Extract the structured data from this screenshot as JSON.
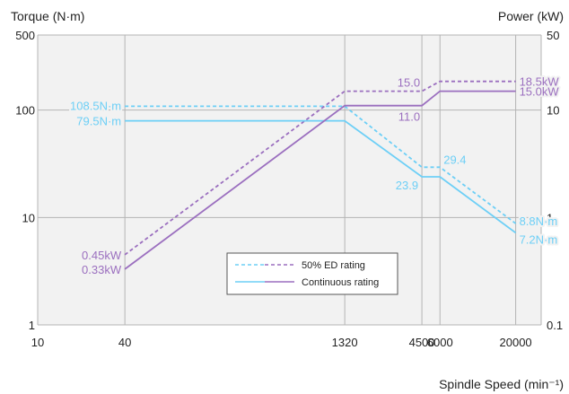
{
  "chart_data": {
    "type": "line",
    "title": "",
    "xlabel": "Spindle Speed (min⁻¹)",
    "ylabel_left": "Torque (N·m)",
    "ylabel_right": "Power (kW)",
    "x_scale": "log",
    "y_scale": "log",
    "xlim": [
      10,
      30000
    ],
    "ylim_left": [
      1,
      500
    ],
    "ylim_right": [
      0.1,
      50
    ],
    "x_ticks": [
      10,
      40,
      1320,
      4500,
      6000,
      20000
    ],
    "x_tick_labels": [
      "10",
      "40",
      "1320",
      "4500",
      "6000",
      "20000"
    ],
    "y_left_ticks": [
      1,
      10,
      100,
      500
    ],
    "y_left_tick_labels": [
      "1",
      "10",
      "100",
      "500"
    ],
    "y_right_ticks": [
      0.1,
      1,
      10,
      50
    ],
    "y_right_tick_labels": [
      "0.1",
      "1",
      "10",
      "50"
    ],
    "grid": true,
    "legend_position": "center",
    "series": [
      {
        "name": "50% ED rating",
        "quantity": "torque",
        "axis": "left",
        "style": "dashed",
        "color": "#6dcff6",
        "points": [
          [
            40,
            108.5
          ],
          [
            1320,
            108.5
          ],
          [
            4500,
            29.4
          ],
          [
            6000,
            29.4
          ],
          [
            20000,
            8.8
          ]
        ]
      },
      {
        "name": "50% ED rating",
        "quantity": "power",
        "axis": "right",
        "style": "dashed",
        "color": "#9b6fbf",
        "points": [
          [
            40,
            0.45
          ],
          [
            1320,
            15.0
          ],
          [
            4500,
            15.0
          ],
          [
            6000,
            18.5
          ],
          [
            20000,
            18.5
          ]
        ]
      },
      {
        "name": "Continuous rating",
        "quantity": "torque",
        "axis": "left",
        "style": "solid",
        "color": "#6dcff6",
        "points": [
          [
            40,
            79.5
          ],
          [
            1320,
            79.5
          ],
          [
            4500,
            23.9
          ],
          [
            6000,
            23.9
          ],
          [
            20000,
            7.2
          ]
        ]
      },
      {
        "name": "Continuous rating",
        "quantity": "power",
        "axis": "right",
        "style": "solid",
        "color": "#9b6fbf",
        "points": [
          [
            40,
            0.33
          ],
          [
            1320,
            11.0
          ],
          [
            4500,
            11.0
          ],
          [
            6000,
            15.0
          ],
          [
            20000,
            15.0
          ]
        ]
      }
    ],
    "annotations": [
      {
        "text": "108.5N·m",
        "x": 40,
        "y": 108.5,
        "axis": "left",
        "color": "#6dcff6",
        "anchor": "end",
        "dx": -4,
        "dy": 4
      },
      {
        "text": "79.5N·m",
        "x": 40,
        "y": 79.5,
        "axis": "left",
        "color": "#6dcff6",
        "anchor": "end",
        "dx": -4,
        "dy": 5
      },
      {
        "text": "29.4",
        "x": 6000,
        "y": 29.4,
        "axis": "left",
        "color": "#6dcff6",
        "anchor": "start",
        "dx": 4,
        "dy": -4
      },
      {
        "text": "23.9",
        "x": 4500,
        "y": 23.9,
        "axis": "left",
        "color": "#6dcff6",
        "anchor": "end",
        "dx": -4,
        "dy": 14
      },
      {
        "text": "8.8N·m",
        "x": 20000,
        "y": 8.8,
        "axis": "left",
        "color": "#6dcff6",
        "anchor": "start",
        "dx": 4,
        "dy": 2
      },
      {
        "text": "7.2N·m",
        "x": 20000,
        "y": 7.2,
        "axis": "left",
        "color": "#6dcff6",
        "anchor": "start",
        "dx": 4,
        "dy": 12
      },
      {
        "text": "0.45kW",
        "x": 40,
        "y": 0.45,
        "axis": "right",
        "color": "#9b6fbf",
        "anchor": "end",
        "dx": -4,
        "dy": 5
      },
      {
        "text": "0.33kW",
        "x": 40,
        "y": 0.33,
        "axis": "right",
        "color": "#9b6fbf",
        "anchor": "end",
        "dx": -4,
        "dy": 5
      },
      {
        "text": "15.0",
        "x": 4500,
        "y": 15.0,
        "axis": "right",
        "color": "#9b6fbf",
        "anchor": "end",
        "dx": -2,
        "dy": -5
      },
      {
        "text": "11.0",
        "x": 4500,
        "y": 11.0,
        "axis": "right",
        "color": "#9b6fbf",
        "anchor": "end",
        "dx": -2,
        "dy": 17
      },
      {
        "text": "18.5kW",
        "x": 20000,
        "y": 18.5,
        "axis": "right",
        "color": "#9b6fbf",
        "anchor": "start",
        "dx": 4,
        "dy": 5
      },
      {
        "text": "15.0kW",
        "x": 20000,
        "y": 15.0,
        "axis": "right",
        "color": "#9b6fbf",
        "anchor": "start",
        "dx": 4,
        "dy": 5
      }
    ],
    "legend": [
      {
        "label": "50% ED rating",
        "style": "dashed"
      },
      {
        "label": "Continuous rating",
        "style": "solid"
      }
    ]
  }
}
